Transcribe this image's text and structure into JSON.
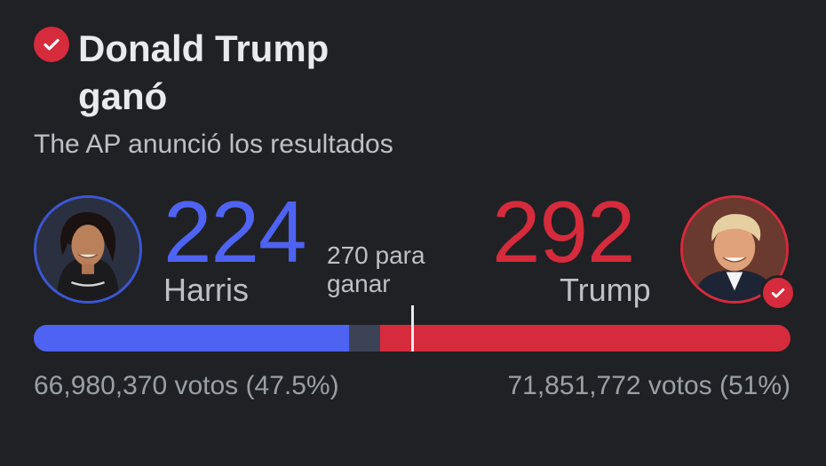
{
  "header": {
    "title": "Donald Trump ganó",
    "subtitle": "The AP anunció los resultados"
  },
  "threshold": {
    "label": "270 para ganar",
    "value": 270
  },
  "total_electoral_votes": 538,
  "candidates": [
    {
      "name": "Harris",
      "electoral_votes": "224",
      "popular_votes_text": "66,980,370 votos (47.5%)",
      "color": "#4f63f2",
      "winner": false
    },
    {
      "name": "Trump",
      "electoral_votes": "292",
      "popular_votes_text": "71,851,772 votos (51%)",
      "color": "#d52b3c",
      "winner": true
    }
  ],
  "icons": {
    "winner_badge": "checkmark-icon"
  },
  "colors": {
    "background": "#202124",
    "democrat": "#4f63f2",
    "republican": "#d52b3c",
    "uncalled": "#3d4356"
  }
}
